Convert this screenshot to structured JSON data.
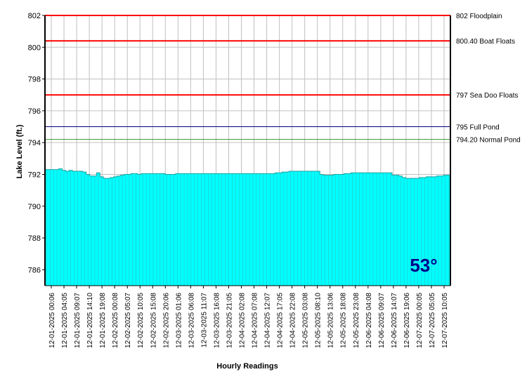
{
  "chart_data": {
    "type": "area",
    "ylabel": "Lake Level (ft.)",
    "xlabel": "Hourly Readings",
    "ylim": [
      785,
      802
    ],
    "y_ticks": [
      786,
      788,
      790,
      792,
      794,
      796,
      798,
      800,
      802
    ],
    "grid": true,
    "fill_color": "#00ffff",
    "x_tick_labels": [
      "12-01-2025 00:06",
      "12-01-2025 04:05",
      "12-01-2025 09:07",
      "12-01-2025 14:10",
      "12-01-2025 19:08",
      "12-02-2025 00:08",
      "12-02-2025 05:07",
      "12-02-2025 10:05",
      "12-02-2025 15:08",
      "12-02-2025 20:06",
      "12-03-2025 01:06",
      "12-03-2025 06:08",
      "12-03-2025 11:07",
      "12-03-2025 16:08",
      "12-03-2025 21:05",
      "12-04-2025 02:08",
      "12-04-2025 07:08",
      "12-04-2025 12:07",
      "12-04-2025 17:05",
      "12-04-2025 22:08",
      "12-05-2025 03:08",
      "12-05-2025 08:10",
      "12-05-2025 13:06",
      "12-05-2025 18:08",
      "12-05-2025 23:08",
      "12-06-2025 04:08",
      "12-06-2025 09:07",
      "12-06-2025 14:07",
      "12-06-2025 19:06",
      "12-07-2025 00:05",
      "12-07-2025 05:05",
      "12-07-2025 10:05"
    ],
    "series": [
      {
        "values": [
          792.3,
          792.3,
          792.3,
          792.3,
          792.35,
          792.25,
          792.2,
          792.25,
          792.2,
          792.2,
          792.2,
          792.15,
          792.0,
          791.9,
          791.9,
          792.1,
          791.85,
          791.75,
          791.75,
          791.8,
          791.85,
          791.9,
          791.95,
          792.0,
          792.0,
          792.05,
          792.05,
          792.0,
          792.05,
          792.05,
          792.05,
          792.05,
          792.05,
          792.05,
          792.05,
          792.0,
          792.0,
          792.0,
          792.05,
          792.05,
          792.05,
          792.05,
          792.05,
          792.05,
          792.05,
          792.05,
          792.05,
          792.05,
          792.05,
          792.05,
          792.05,
          792.05,
          792.05,
          792.05,
          792.05,
          792.05,
          792.05,
          792.05,
          792.05,
          792.05,
          792.05,
          792.05,
          792.05,
          792.05,
          792.05,
          792.05,
          792.05,
          792.1,
          792.1,
          792.15,
          792.15,
          792.2,
          792.2,
          792.2,
          792.2,
          792.2,
          792.2,
          792.2,
          792.2,
          792.2,
          792.0,
          791.95,
          791.95,
          791.95,
          792.0,
          792.0,
          792.0,
          792.05,
          792.05,
          792.1,
          792.1,
          792.1,
          792.1,
          792.1,
          792.1,
          792.1,
          792.1,
          792.1,
          792.1,
          792.1,
          792.1,
          791.95,
          791.95,
          791.9,
          791.8,
          791.75,
          791.75,
          791.75,
          791.75,
          791.8,
          791.8,
          791.85,
          791.85,
          791.85,
          791.9,
          791.9,
          791.95,
          791.95
        ]
      }
    ],
    "reference_lines": [
      {
        "value": 802,
        "label": "802 Floodplain",
        "color": "#ff0000"
      },
      {
        "value": 800.4,
        "label": "800.40 Boat Floats",
        "color": "#ff0000"
      },
      {
        "value": 797,
        "label": "797 Sea Doo Floats",
        "color": "#ff0000"
      },
      {
        "value": 795,
        "label": "795 Full Pond",
        "color": "#000080"
      },
      {
        "value": 794.2,
        "label": "794.20 Normal Pond",
        "color": "#339933"
      }
    ],
    "temperature_badge": {
      "text": "53°",
      "color": "#00008b"
    }
  }
}
